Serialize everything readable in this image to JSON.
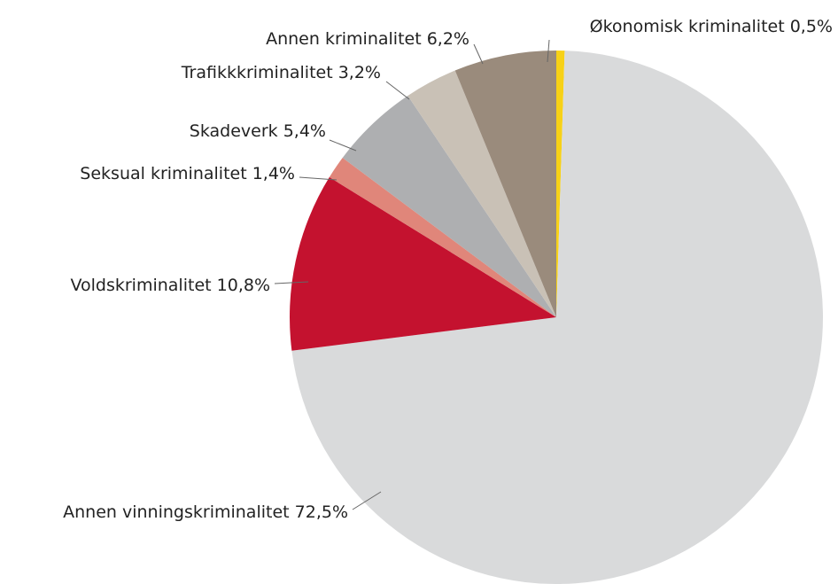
{
  "chart_data": {
    "type": "pie",
    "categories": [
      "Økonomisk kriminalitet",
      "Annen vinningskriminalitet",
      "Voldskriminalitet",
      "Seksual kriminalitet",
      "Skadeverk",
      "Trafikkkriminalitet",
      "Annen kriminalitet"
    ],
    "values": [
      0.5,
      72.5,
      10.8,
      1.4,
      5.4,
      3.2,
      6.2
    ],
    "value_labels": [
      "0,5%",
      "72,5%",
      "10,8%",
      "1,4%",
      "5,4%",
      "3,2%",
      "6,2%"
    ],
    "colors": [
      "#f7d117",
      "#d9dadb",
      "#c4122f",
      "#e0867a",
      "#aeafb1",
      "#c9c1b6",
      "#9a8b7c"
    ]
  }
}
